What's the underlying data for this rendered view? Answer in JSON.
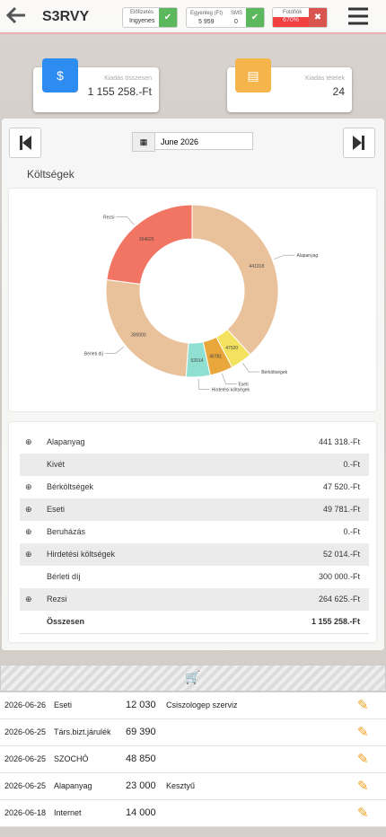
{
  "header": {
    "brand": "S3RVY",
    "subscription": {
      "label": "Előfizetés",
      "value": "Ingyenes"
    },
    "balance": {
      "label": "Egyenleg (Ft)",
      "value": "5 959"
    },
    "sms": {
      "label": "SMS",
      "value": "0"
    },
    "photos": {
      "label": "Fotófiók",
      "value": "670%"
    }
  },
  "cards": [
    {
      "label": "Kiadás összesen",
      "value": "1 155 258.-Ft"
    },
    {
      "label": "Kiadás tételek",
      "value": "24"
    }
  ],
  "date": "June 2026",
  "section_title": "Költségek",
  "chart_data": {
    "type": "donut",
    "categories": [
      "Alapanyag",
      "Bérköltségek",
      "Eseti",
      "Hirdetési költségek",
      "Bérleti díj",
      "Rezsi"
    ],
    "values": [
      441318,
      47520,
      49781,
      52014,
      300000,
      264625
    ],
    "colors": [
      "#e9c29c",
      "#f2e25e",
      "#e9a63a",
      "#8fe0d0",
      "#e9c29c",
      "#f27563"
    ]
  },
  "table": {
    "rows": [
      [
        "Alapanyag",
        "441 318.-Ft"
      ],
      [
        "Kivét",
        "0.-Ft"
      ],
      [
        "Bérköltségek",
        "47 520.-Ft"
      ],
      [
        "Eseti",
        "49 781.-Ft"
      ],
      [
        "Beruházás",
        "0.-Ft"
      ],
      [
        "Hirdetési költségek",
        "52 014.-Ft"
      ],
      [
        "Bérleti díj",
        "300 000.-Ft"
      ],
      [
        "Rezsi",
        "264 625.-Ft"
      ],
      [
        "Összesen",
        "1 155 258.-Ft"
      ]
    ]
  },
  "list": {
    "rows": [
      [
        "2026-06-26",
        "Eseti",
        "12 030",
        "Csiszologep szerviz"
      ],
      [
        "2026-06-25",
        "Társ.bizt.járulék",
        "69 390",
        ""
      ],
      [
        "2026-06-25",
        "SZOCHÓ",
        "48 850",
        ""
      ],
      [
        "2026-06-25",
        "Alapanyag",
        "23 000",
        "Kesztyű"
      ],
      [
        "2026-06-18",
        "Internet",
        "14 000",
        ""
      ]
    ]
  }
}
